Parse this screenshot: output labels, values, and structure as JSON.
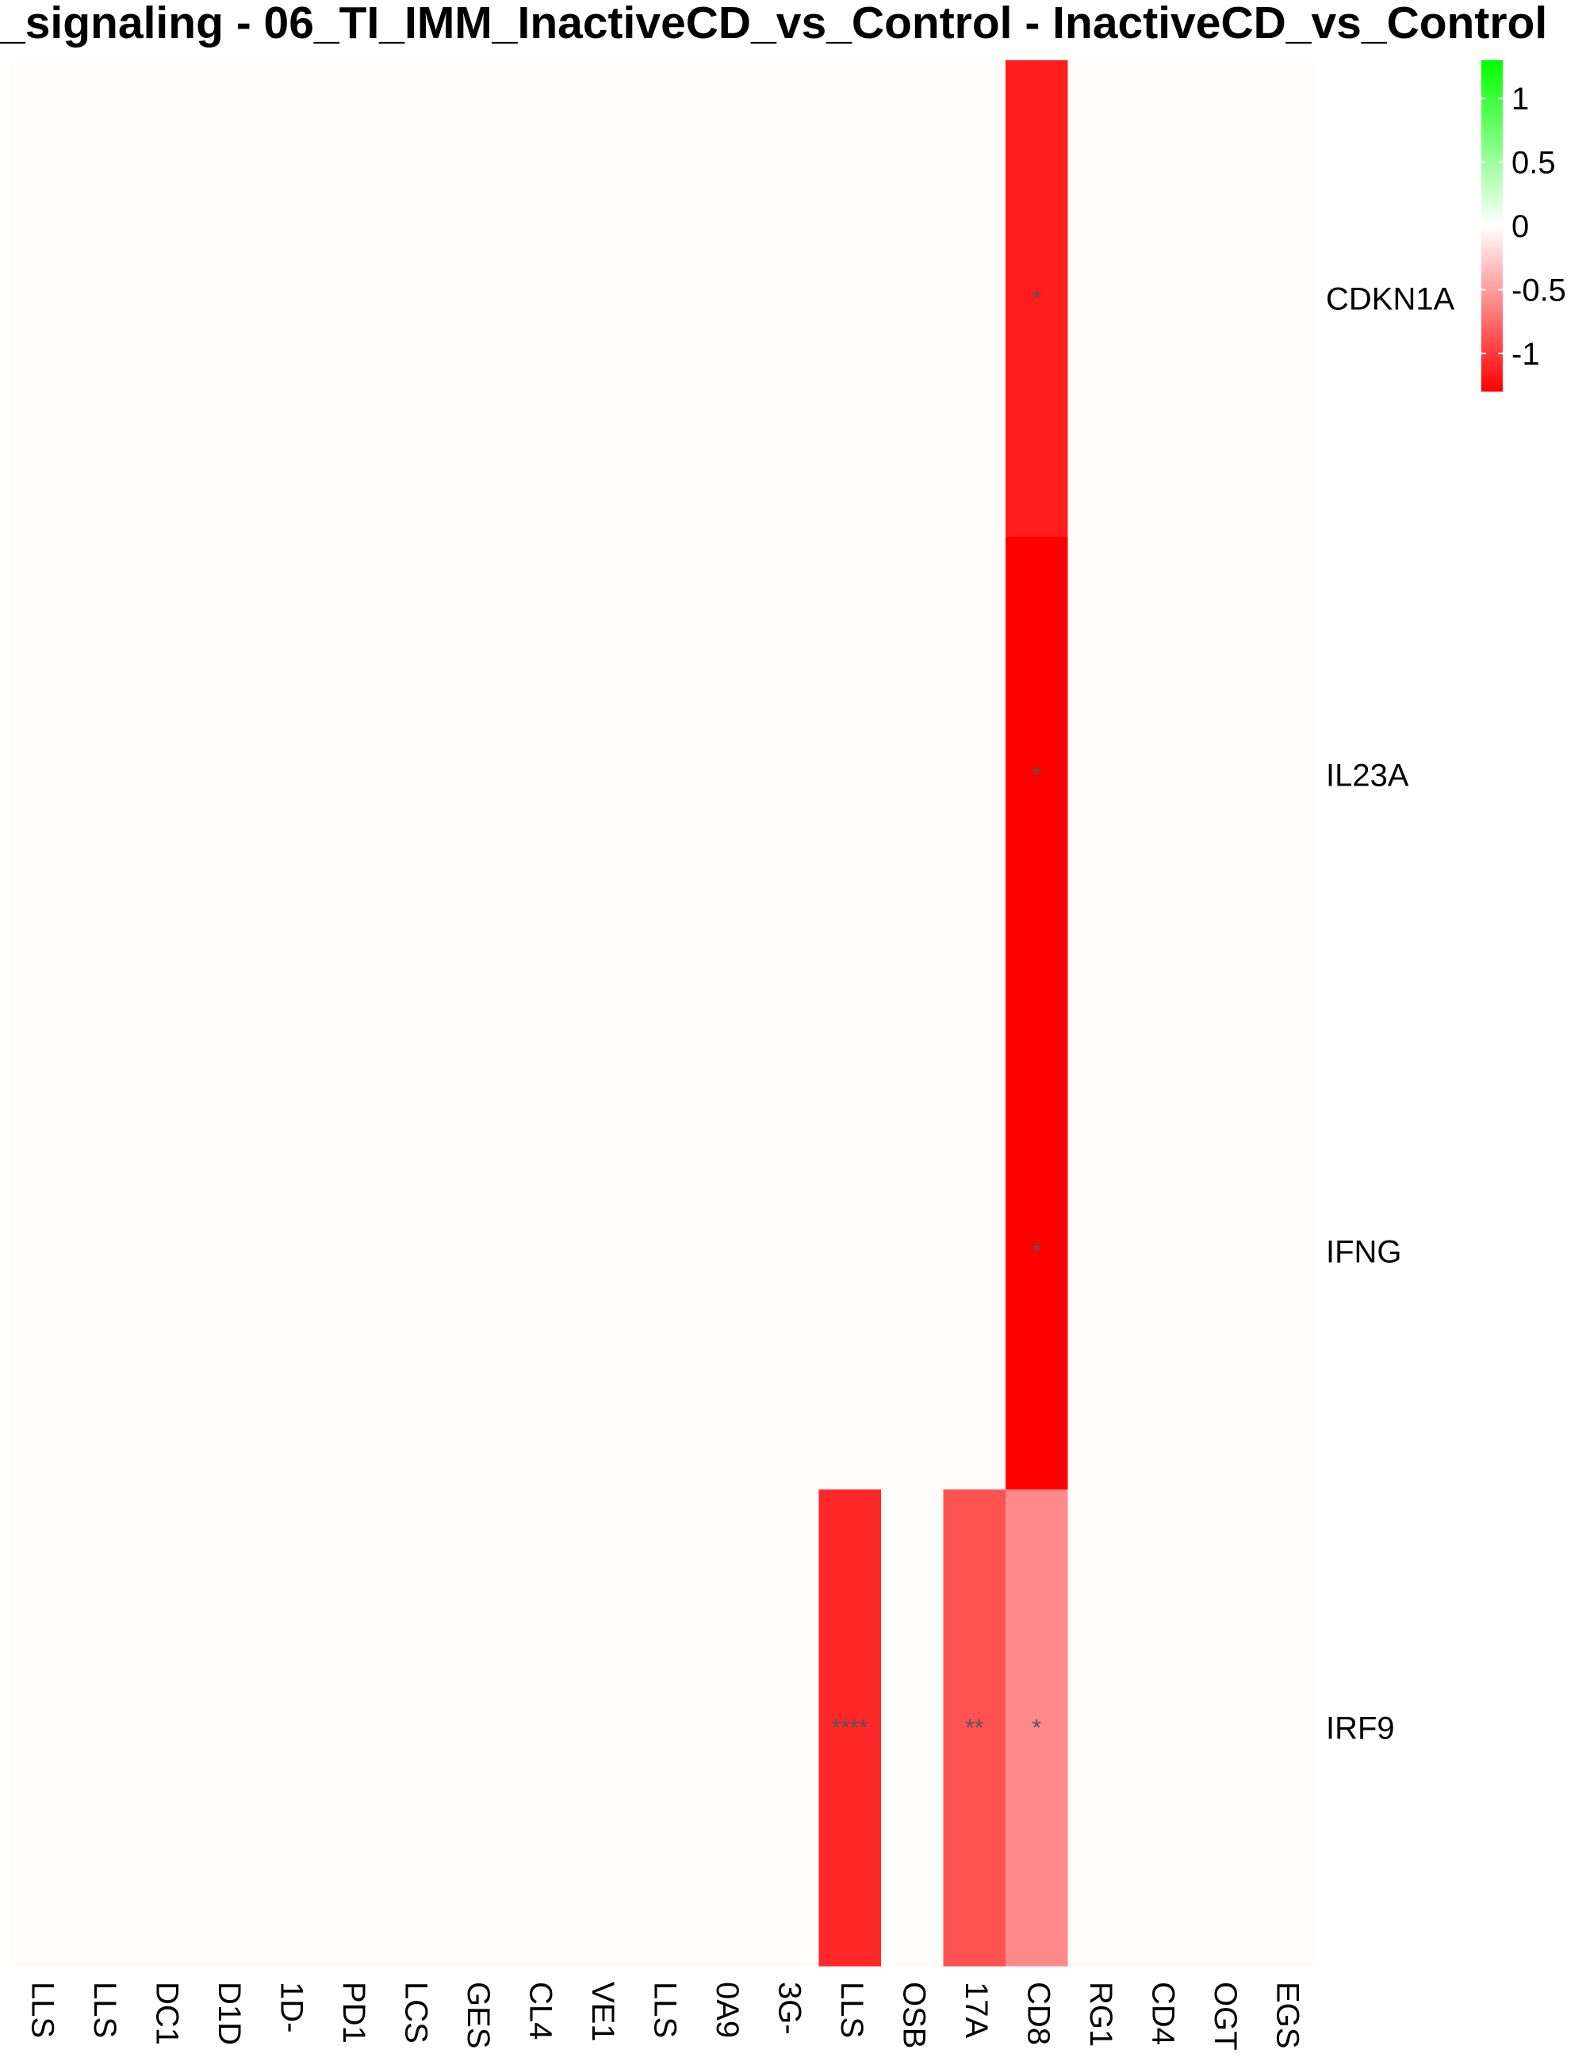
{
  "chart_data": {
    "type": "heatmap",
    "title": "_signaling - 06_TI_IMM_InactiveCD_vs_Control - InactiveCD_vs_Control",
    "rows": [
      "CDKN1A",
      "IL23A",
      "IFNG",
      "IRF9"
    ],
    "columns": [
      "LLS",
      "LLS",
      "DC1",
      "D1D",
      "1D-",
      "PD1",
      "LCS",
      "GES",
      "CL4",
      "VE1",
      "LLS",
      "0A9",
      "3G-",
      "LLS",
      "OSB",
      "17A",
      "CD8",
      "RG1",
      "CD4",
      "OGT",
      "EGS"
    ],
    "values": [
      [
        0,
        0,
        0,
        0,
        0,
        0,
        0,
        0,
        0,
        0,
        0,
        0,
        0,
        0,
        0,
        0,
        -1.15,
        0,
        0,
        0,
        0
      ],
      [
        0,
        0,
        0,
        0,
        0,
        0,
        0,
        0,
        0,
        0,
        0,
        0,
        0,
        0,
        0,
        0,
        -1.3,
        0,
        0,
        0,
        0
      ],
      [
        0,
        0,
        0,
        0,
        0,
        0,
        0,
        0,
        0,
        0,
        0,
        0,
        0,
        0,
        0,
        0,
        -1.3,
        0,
        0,
        0,
        0
      ],
      [
        0,
        0,
        0,
        0,
        0,
        0,
        0,
        0,
        0,
        0,
        0,
        0,
        0,
        -1.1,
        0,
        -0.88,
        -0.6,
        0,
        0,
        0,
        0
      ]
    ],
    "annotations": [
      [
        "",
        "",
        "",
        "",
        "",
        "",
        "",
        "",
        "",
        "",
        "",
        "",
        "",
        "",
        "",
        "",
        "*",
        "",
        "",
        "",
        ""
      ],
      [
        "",
        "",
        "",
        "",
        "",
        "",
        "",
        "",
        "",
        "",
        "",
        "",
        "",
        "",
        "",
        "",
        "*",
        "",
        "",
        "",
        ""
      ],
      [
        "",
        "",
        "",
        "",
        "",
        "",
        "",
        "",
        "",
        "",
        "",
        "",
        "",
        "",
        "",
        "",
        "*",
        "",
        "",
        "",
        ""
      ],
      [
        "",
        "",
        "",
        "",
        "",
        "",
        "",
        "",
        "",
        "",
        "",
        "",
        "",
        "****",
        "",
        "**",
        "*",
        "",
        "",
        "",
        ""
      ]
    ],
    "colorbar": {
      "range": [
        -1.3,
        1.3
      ],
      "ticks": [
        1,
        0.5,
        0,
        -0.5,
        -1
      ],
      "tick_labels": [
        "1",
        "0.5",
        "0",
        "-0.5",
        "-1"
      ],
      "low_color": "#ff0000",
      "mid_color": "#ffffff",
      "high_color": "#00ff00"
    },
    "zero_cell_color": "#fefdfb",
    "legend": "top-right"
  }
}
